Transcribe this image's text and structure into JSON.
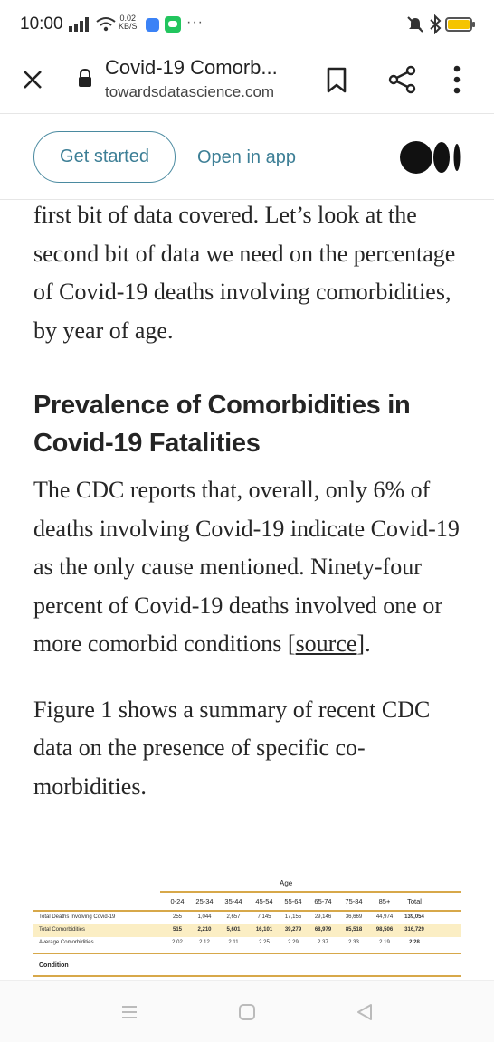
{
  "status_bar": {
    "time": "10:00",
    "net_speed_value": "0.02",
    "net_speed_unit": "KB/S",
    "battery_color": "#f5c400"
  },
  "browser": {
    "page_title": "Covid-19 Comorb...",
    "domain": "towardsdatascience.com"
  },
  "banner": {
    "get_started_label": "Get started",
    "open_in_app_label": "Open in app"
  },
  "article": {
    "paragraph1": "first bit of data covered. Let’s look at the second bit of data we need on the percentage of Covid-19 deaths involving comorbidities, by year of age.",
    "heading": "Prevalence of Comorbidities in Covid-19 Fatalities",
    "paragraph2_text": "The CDC reports that, overall, only 6% of deaths involving Covid-19 indicate Covid-19 as the only cause mentioned. Ninety-four percent of Covid-19 deaths involved one or more comorbid conditions [",
    "paragraph2_link": "source",
    "paragraph2_end": "].",
    "paragraph3": "Figure 1 shows a summary of recent CDC data on the presence of specific co-morbidities."
  },
  "figure": {
    "age_label": "Age",
    "columns": [
      "0-24",
      "25-34",
      "35-44",
      "45-54",
      "55-64",
      "65-74",
      "75-84",
      "85+",
      "Total"
    ],
    "rows": [
      {
        "label": "Total Deaths Involving Covid-19",
        "values": [
          "255",
          "1,044",
          "2,657",
          "7,145",
          "17,155",
          "29,146",
          "36,669",
          "44,974",
          "139,054"
        ],
        "highlight": false
      },
      {
        "label": "Total Comorbidities",
        "values": [
          "515",
          "2,210",
          "5,601",
          "16,101",
          "39,279",
          "68,979",
          "85,518",
          "98,506",
          "316,729"
        ],
        "highlight": true
      },
      {
        "label": "Average Comorbidities",
        "values": [
          "2.02",
          "2.12",
          "2.11",
          "2.25",
          "2.29",
          "2.37",
          "2.33",
          "2.19",
          "2.28"
        ],
        "highlight": false
      }
    ],
    "condition_label": "Condition",
    "accent_color": "#d7a84a",
    "highlight_color": "#fbeec4"
  },
  "colors": {
    "link_accent": "#3d7f96"
  }
}
